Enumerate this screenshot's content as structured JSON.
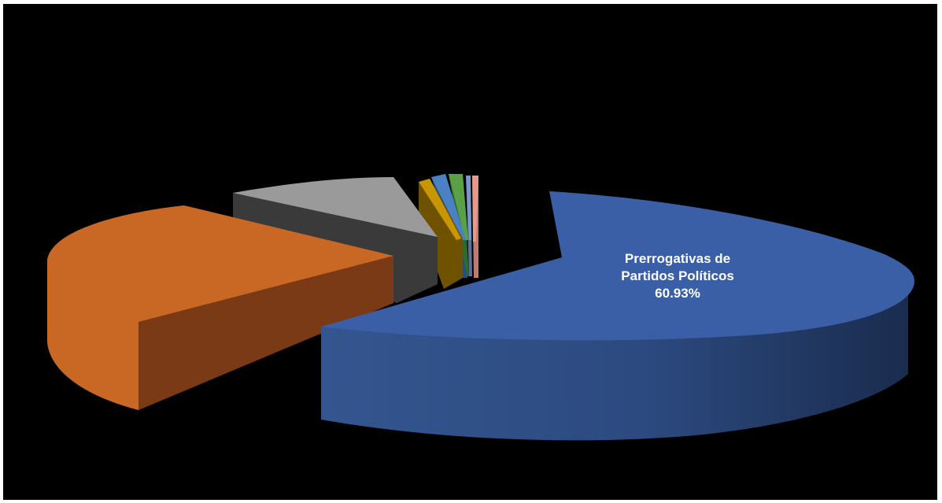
{
  "chart_data": {
    "type": "pie",
    "style": "3d-exploded",
    "title": "",
    "legend": "none",
    "slices": [
      {
        "label": "Prerrogativas de Partidos Políticos",
        "percent": 60.93,
        "color": "#3a5fa6",
        "show_label": true
      },
      {
        "label": "",
        "percent": 24.6,
        "color": "#c86824",
        "show_label": false
      },
      {
        "label": "",
        "percent": 9.8,
        "color": "#9a9a9a",
        "show_label": false
      },
      {
        "label": "",
        "percent": 2.0,
        "color": "#c89600",
        "show_label": false
      },
      {
        "label": "",
        "percent": 0.7,
        "color": "#4a80c4",
        "show_label": false
      },
      {
        "label": "",
        "percent": 0.9,
        "color": "#5aa046",
        "show_label": false
      },
      {
        "label": "",
        "percent": 0.3,
        "color": "#7898cc",
        "show_label": false
      },
      {
        "label": "",
        "percent": 0.77,
        "color": "#e89a88",
        "show_label": false
      }
    ],
    "data_label": {
      "name_line1": "Prerrogativas de",
      "name_line2": "Partidos Políticos",
      "value": "60.93%"
    }
  }
}
